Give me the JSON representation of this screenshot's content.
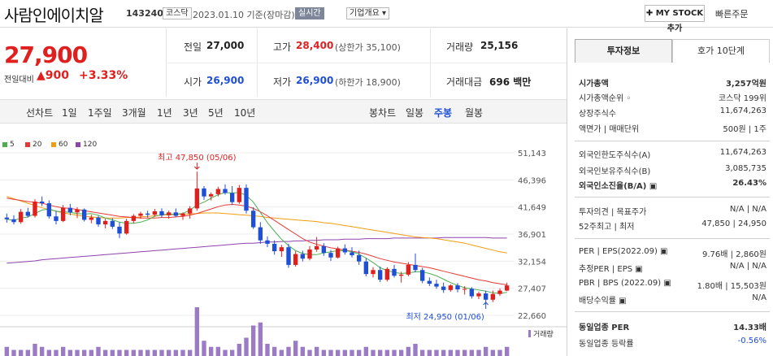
{
  "header": {
    "title": "사람인에이치알",
    "code": "143240",
    "market": "코스닥",
    "date_text": "2023.01.10 기준(장마감)",
    "realtime": "실시간",
    "company_overview": "기업개요 ▾",
    "my_stock": "✚ MY STOCK 추가",
    "quick_order": "빠른주문"
  },
  "price": {
    "current": "27,900",
    "change_label": "전일대비",
    "change": "▲900",
    "change_pct": "+3.33%"
  },
  "summary": {
    "prev_close": {
      "label": "전일",
      "value": "27,000"
    },
    "high": {
      "label": "고가",
      "value": "28,400",
      "sub": "(상한가 35,100)"
    },
    "volume": {
      "label": "거래량",
      "value": "25,156"
    },
    "open": {
      "label": "시가",
      "value": "26,900"
    },
    "low": {
      "label": "저가",
      "value": "26,900",
      "sub": "(하한가 18,900)"
    },
    "amount": {
      "label": "거래대금",
      "value": "696 백만"
    }
  },
  "periods": {
    "line_label": "선차트",
    "line_items": [
      "1일",
      "1주일",
      "3개월",
      "1년",
      "3년",
      "5년",
      "10년"
    ],
    "candle_label": "봉차트",
    "candle_items": [
      "일봉",
      "주봉",
      "월봉"
    ],
    "selected": "주봉"
  },
  "colors": {
    "up": "#e01f1f",
    "down": "#1f4fd6",
    "ma5": "#4caf50",
    "ma20": "#e53935",
    "ma60": "#f39c12",
    "ma120": "#8e44ad",
    "volume": "#9b7bc6"
  },
  "chart_data": {
    "type": "candlestick",
    "legend": [
      "5",
      "20",
      "60",
      "120"
    ],
    "y_ticks": [
      "51,143",
      "46,396",
      "41,649",
      "36,901",
      "32,154",
      "27,407",
      "22,660"
    ],
    "ylim": [
      22660,
      51143
    ],
    "high_annotation": "최고 47,850 (05/06)",
    "low_annotation": "최저 24,950 (01/06)",
    "volume_label": "거래량",
    "candles": [
      [
        39800,
        40500,
        38900,
        39500
      ],
      [
        39500,
        40200,
        38600,
        39000
      ],
      [
        39000,
        41300,
        38700,
        40800
      ],
      [
        40800,
        41500,
        39800,
        40100
      ],
      [
        40100,
        43000,
        39800,
        42600
      ],
      [
        42600,
        43500,
        41800,
        42300
      ],
      [
        42300,
        42800,
        39600,
        40000
      ],
      [
        40000,
        41000,
        38600,
        39200
      ],
      [
        39200,
        42000,
        39000,
        41500
      ],
      [
        41500,
        42200,
        40200,
        40700
      ],
      [
        40700,
        41600,
        39700,
        41200
      ],
      [
        41200,
        41400,
        39100,
        39400
      ],
      [
        39400,
        40300,
        38800,
        39800
      ],
      [
        39800,
        40100,
        38200,
        38600
      ],
      [
        38600,
        39600,
        37900,
        39200
      ],
      [
        39200,
        39700,
        37800,
        38200
      ],
      [
        38200,
        39000,
        36200,
        37000
      ],
      [
        37000,
        39600,
        36800,
        39200
      ],
      [
        39200,
        40400,
        38800,
        40100
      ],
      [
        40100,
        40800,
        39600,
        40500
      ],
      [
        40500,
        41000,
        39800,
        40300
      ],
      [
        40300,
        41300,
        40000,
        40900
      ],
      [
        40900,
        41400,
        39800,
        40200
      ],
      [
        40200,
        41000,
        39600,
        40700
      ],
      [
        40700,
        41400,
        39900,
        40100
      ],
      [
        40100,
        40700,
        39400,
        40500
      ],
      [
        40500,
        41800,
        39600,
        41400
      ],
      [
        41400,
        47850,
        41000,
        44900
      ],
      [
        44900,
        45300,
        42900,
        43500
      ],
      [
        43500,
        44200,
        42800,
        43900
      ],
      [
        43900,
        45200,
        43500,
        44800
      ],
      [
        44800,
        45600,
        43800,
        44100
      ],
      [
        44100,
        45300,
        42000,
        42500
      ],
      [
        42500,
        45500,
        42200,
        45000
      ],
      [
        45000,
        45600,
        40500,
        41000
      ],
      [
        41000,
        41600,
        37800,
        38100
      ],
      [
        38100,
        39000,
        35200,
        35800
      ],
      [
        35800,
        36500,
        34600,
        35200
      ],
      [
        35200,
        35800,
        33300,
        33900
      ],
      [
        33900,
        35000,
        32900,
        34600
      ],
      [
        34600,
        35200,
        31000,
        31500
      ],
      [
        31500,
        33900,
        31200,
        33400
      ],
      [
        33400,
        34000,
        32100,
        32600
      ],
      [
        32600,
        34800,
        32300,
        34200
      ],
      [
        34200,
        36400,
        33800,
        34800
      ],
      [
        34800,
        35300,
        33100,
        33600
      ],
      [
        33600,
        34100,
        32200,
        32800
      ],
      [
        32800,
        34700,
        32600,
        34400
      ],
      [
        34400,
        35100,
        33300,
        33700
      ],
      [
        33700,
        34600,
        32800,
        33200
      ],
      [
        33200,
        34000,
        31500,
        32100
      ],
      [
        32100,
        32700,
        29500,
        29900
      ],
      [
        29900,
        31100,
        29300,
        30600
      ],
      [
        30600,
        31200,
        28500,
        28900
      ],
      [
        28900,
        31100,
        28600,
        30800
      ],
      [
        30800,
        31500,
        29300,
        29600
      ],
      [
        29600,
        30300,
        28400,
        29800
      ],
      [
        29800,
        32000,
        29500,
        31500
      ],
      [
        31500,
        33500,
        30200,
        30600
      ],
      [
        30600,
        31000,
        28300,
        28700
      ],
      [
        28700,
        29300,
        27800,
        28200
      ],
      [
        28200,
        28900,
        27300,
        27700
      ],
      [
        27700,
        28400,
        26600,
        27100
      ],
      [
        27100,
        28100,
        26800,
        27900
      ],
      [
        27900,
        28300,
        26700,
        27200
      ],
      [
        27200,
        27800,
        26300,
        27300
      ],
      [
        27300,
        27600,
        25600,
        26000
      ],
      [
        26000,
        26800,
        25500,
        26500
      ],
      [
        26500,
        27000,
        24950,
        25400
      ],
      [
        25400,
        27000,
        25000,
        26400
      ],
      [
        26400,
        27400,
        26100,
        27000
      ],
      [
        27000,
        28400,
        26900,
        27900
      ]
    ],
    "ma5": [
      39500,
      39300,
      39700,
      39900,
      40500,
      41100,
      41300,
      40900,
      40800,
      40700,
      40500,
      40400,
      40500,
      40200,
      39700,
      39400,
      39000,
      38800,
      38800,
      39000,
      39400,
      40000,
      40300,
      40400,
      40400,
      40500,
      41100,
      42000,
      42500,
      43200,
      43800,
      44200,
      44100,
      44200,
      43700,
      42500,
      40700,
      38900,
      37400,
      36000,
      34900,
      34000,
      33500,
      33300,
      33300,
      33600,
      33800,
      34000,
      34000,
      33800,
      33400,
      32700,
      31900,
      31000,
      30500,
      30200,
      30000,
      30100,
      30300,
      30300,
      30000,
      29600,
      29000,
      28400,
      27900,
      27500,
      27300,
      27100,
      26900,
      26600,
      26500,
      26700
    ],
    "ma20": [
      43200,
      43000,
      42800,
      42600,
      42500,
      42300,
      42000,
      41700,
      41500,
      41400,
      41200,
      41000,
      40800,
      40600,
      40400,
      40200,
      40000,
      39900,
      39800,
      39700,
      39700,
      39700,
      39800,
      39800,
      39900,
      40000,
      40200,
      40500,
      40900,
      41300,
      41700,
      42000,
      42100,
      42000,
      41800,
      41400,
      40800,
      40100,
      39300,
      38500,
      37700,
      36900,
      36100,
      35500,
      35100,
      34800,
      34500,
      34300,
      34100,
      33900,
      33700,
      33400,
      33000,
      32600,
      32300,
      32000,
      31800,
      31600,
      31400,
      31200,
      31000,
      30700,
      30400,
      30100,
      29800,
      29500,
      29200,
      28900,
      28700,
      28400,
      28200,
      28000
    ],
    "ma60": [
      43500,
      43100,
      42700,
      42300,
      41900,
      41500,
      41200,
      40900,
      40600,
      40400,
      40200,
      40000,
      39900,
      39800,
      39700,
      39700,
      39700,
      39800,
      39800,
      39900,
      40000,
      40100,
      40200,
      40300,
      40300,
      40400,
      40400,
      40500,
      40600,
      40600,
      40600,
      40500,
      40400,
      40300,
      40200,
      40100,
      40000,
      39800,
      39700,
      39600,
      39500,
      39400,
      39300,
      39200,
      39100,
      38900,
      38800,
      38600,
      38400,
      38200,
      38000,
      37800,
      37600,
      37400,
      37200,
      37000,
      36800,
      36600,
      36400,
      36300,
      36200,
      36100,
      35900,
      35700,
      35500,
      35300,
      35000,
      34700,
      34400,
      34100,
      33800,
      33600
    ],
    "ma120": [
      31800,
      31900,
      32000,
      32100,
      32200,
      32400,
      32500,
      32600,
      32700,
      32800,
      32900,
      33000,
      33100,
      33200,
      33300,
      33400,
      33500,
      33600,
      33700,
      33800,
      33900,
      34000,
      34100,
      34200,
      34300,
      34400,
      34500,
      34600,
      34700,
      34800,
      34900,
      35000,
      35100,
      35200,
      35300,
      35300,
      35400,
      35500,
      35500,
      35600,
      35600,
      35700,
      35700,
      35800,
      35800,
      35900,
      35900,
      35900,
      36000,
      36000,
      36000,
      36100,
      36100,
      36100,
      36100,
      36200,
      36200,
      36200,
      36200,
      36200,
      36200,
      36200,
      36300,
      36300,
      36300,
      36300,
      36300,
      36300,
      36300,
      36200,
      36200,
      36200
    ],
    "volume": [
      3,
      2,
      2,
      2,
      4,
      3,
      2,
      2,
      3,
      2,
      2,
      2,
      2,
      3,
      2,
      2,
      2,
      2,
      2,
      2,
      2,
      2,
      2,
      2,
      2,
      2,
      2,
      16,
      5,
      3,
      3,
      2,
      2,
      4,
      6,
      10,
      11,
      4,
      3,
      2,
      3,
      5,
      3,
      2,
      3,
      2,
      2,
      2,
      2,
      2,
      2,
      3,
      2,
      2,
      2,
      2,
      2,
      3,
      4,
      2,
      2,
      2,
      2,
      2,
      2,
      2,
      2,
      2,
      3,
      2,
      2,
      3
    ]
  },
  "investment_tabs": {
    "active": "투자정보",
    "other": "호가 10단계"
  },
  "investment_info": [
    {
      "label": "시가총액",
      "value": "3,257억원",
      "bold": true
    },
    {
      "label": "시가총액순위 ◦",
      "value": "코스닥 199위"
    },
    {
      "label": "상장주식수",
      "value": "11,674,263"
    },
    {
      "label": "액면가 | 매매단위",
      "value": "500원 | 1주"
    },
    {
      "label": "외국인한도주식수(A)",
      "value": "11,674,263"
    },
    {
      "label": "외국인보유주식수(B)",
      "value": "3,085,735"
    },
    {
      "label": "외국인소진율(B/A) ▣",
      "value": "26.43%",
      "bold": true
    },
    {
      "label": "투자의견 | 목표주가",
      "value": "N/A | N/A"
    },
    {
      "label": "52주최고 | 최저",
      "value": "47,850 | 24,950"
    },
    {
      "label": "PER | EPS(2022.09) ▣",
      "value": "9.76배 | 2,860원"
    },
    {
      "label": "추정PER | EPS ▣",
      "value": "N/A | N/A"
    },
    {
      "label": "PBR | BPS (2022.09) ▣",
      "value": "1.80배 | 15,503원"
    },
    {
      "label": "배당수익률 ▣",
      "value": "N/A"
    },
    {
      "label": "동일업종 PER",
      "value": "14.33배",
      "bold": true
    },
    {
      "label": "동일업종 등락률",
      "value": "-0.56%",
      "blue": true
    }
  ]
}
